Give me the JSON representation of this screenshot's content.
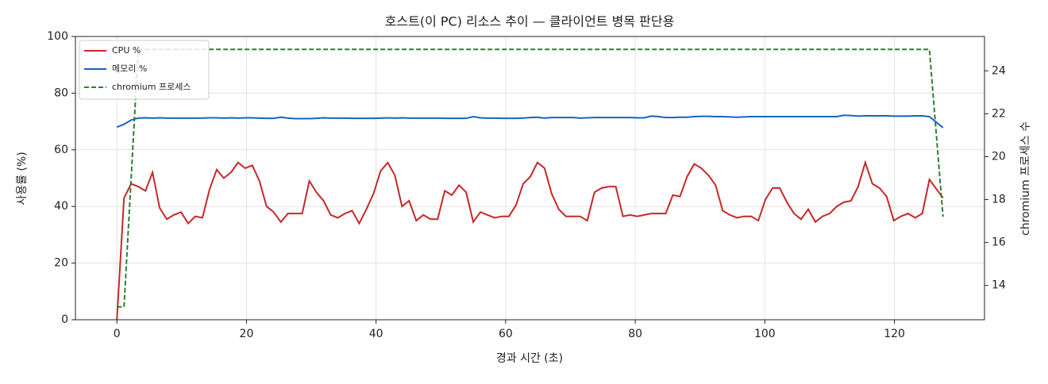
{
  "chart_data": {
    "type": "line",
    "title": "호스트(이 PC) 리소스 추이 — 클라이언트 병목 판단용",
    "x_label": "경과 시간 (초)",
    "y_label": "사용률 (%)",
    "y2_label": "chromium 프로세스 수",
    "x": [
      0,
      1.1,
      2.2,
      3.3,
      4.4,
      5.5,
      6.6,
      7.7,
      8.8,
      9.9,
      11,
      12.1,
      13.2,
      14.3,
      15.4,
      16.5,
      17.6,
      18.7,
      19.8,
      20.9,
      22,
      23.1,
      24.2,
      25.3,
      26.4,
      27.5,
      28.6,
      29.7,
      30.8,
      31.9,
      33,
      34.1,
      35.2,
      36.3,
      37.4,
      38.5,
      39.6,
      40.7,
      41.8,
      42.9,
      44,
      45.1,
      46.2,
      47.3,
      48.4,
      49.5,
      50.6,
      51.7,
      52.8,
      53.9,
      55,
      56.1,
      57.2,
      58.3,
      59.4,
      60.5,
      61.6,
      62.7,
      63.8,
      64.9,
      66,
      67.1,
      68.2,
      69.3,
      70.4,
      71.5,
      72.6,
      73.7,
      74.8,
      75.9,
      77,
      78.1,
      79.2,
      80.3,
      81.4,
      82.5,
      83.6,
      84.7,
      85.8,
      86.9,
      88,
      89.1,
      90.2,
      91.3,
      92.4,
      93.5,
      94.6,
      95.7,
      96.8,
      97.9,
      99,
      100.1,
      101.2,
      102.3,
      103.4,
      104.5,
      105.6,
      106.7,
      107.8,
      108.9,
      110,
      111.1,
      112.2,
      113.3,
      114.4,
      115.5,
      116.6,
      117.7,
      118.8,
      119.9,
      121,
      122.1,
      123.2,
      124.3,
      125.4,
      127.5
    ],
    "series": [
      {
        "name": "CPU %",
        "color": "#c62828",
        "dash": false,
        "values": [
          0,
          43,
          48,
          47,
          45.5,
          52,
          39.5,
          35.5,
          37,
          38,
          34,
          36.5,
          36,
          46,
          53,
          50,
          52,
          55.5,
          53.5,
          54.5,
          49,
          40,
          38,
          34.5,
          37.5,
          37.5,
          37.5,
          49,
          45,
          42,
          37,
          36,
          37.5,
          38.5,
          34,
          39,
          44.5,
          52.5,
          55.5,
          51,
          40,
          42,
          35,
          37,
          35.5,
          35.5,
          45.5,
          44,
          47.5,
          45,
          34.5,
          38,
          37,
          36,
          36.5,
          36.5,
          40.5,
          48,
          50.5,
          55.5,
          53.5,
          44.5,
          39,
          36.5,
          36.5,
          36.5,
          35,
          45,
          46.5,
          47,
          47,
          36.5,
          37,
          36.5,
          37,
          37.5,
          37.5,
          37.5,
          44,
          43.5,
          50.5,
          55,
          53.5,
          51,
          47.5,
          38.5,
          37,
          36,
          36.5,
          36.5,
          35,
          42.5,
          46.5,
          46.5,
          41.5,
          37.5,
          35.5,
          39,
          34.5,
          36.5,
          37.5,
          40,
          41.5,
          42,
          47,
          55.5,
          48,
          46.5,
          43.5,
          35,
          36.5,
          37.5,
          36,
          37.5,
          49.5,
          43
        ]
      },
      {
        "name": "메모리 %",
        "color": "#1565c0",
        "dash": false,
        "values": [
          68,
          69,
          70.5,
          71.2,
          71.3,
          71.2,
          71.3,
          71.2,
          71.2,
          71.2,
          71.2,
          71.2,
          71.2,
          71.3,
          71.3,
          71.2,
          71.3,
          71.2,
          71.3,
          71.3,
          71.2,
          71.1,
          71.1,
          71.5,
          71.2,
          71,
          71,
          71,
          71.1,
          71.3,
          71.2,
          71.2,
          71.2,
          71.1,
          71.1,
          71.1,
          71.1,
          71.2,
          71.3,
          71.2,
          71.3,
          71.2,
          71.2,
          71.2,
          71.2,
          71.2,
          71.1,
          71.1,
          71.1,
          71.1,
          71.7,
          71.3,
          71.2,
          71.2,
          71.1,
          71.1,
          71.1,
          71.2,
          71.4,
          71.5,
          71.2,
          71.4,
          71.4,
          71.4,
          71.4,
          71.2,
          71.3,
          71.4,
          71.4,
          71.4,
          71.4,
          71.4,
          71.4,
          71.3,
          71.3,
          71.9,
          71.7,
          71.4,
          71.4,
          71.5,
          71.5,
          71.7,
          71.8,
          71.8,
          71.7,
          71.7,
          71.6,
          71.5,
          71.6,
          71.7,
          71.7,
          71.7,
          71.7,
          71.7,
          71.7,
          71.7,
          71.7,
          71.7,
          71.7,
          71.7,
          71.7,
          71.7,
          72.2,
          72.1,
          71.9,
          72,
          72,
          72,
          72,
          71.9,
          71.9,
          71.9,
          72,
          72,
          71.7,
          67.8
        ]
      },
      {
        "name": "chromium 프로세스",
        "color": "#2e7d32",
        "dash": true,
        "axis": "y2",
        "values": [
          13,
          13,
          19,
          25,
          25,
          25,
          25,
          25,
          25,
          25,
          25,
          25,
          25,
          25,
          25,
          25,
          25,
          25,
          25,
          25,
          25,
          25,
          25,
          25,
          25,
          25,
          25,
          25,
          25,
          25,
          25,
          25,
          25,
          25,
          25,
          25,
          25,
          25,
          25,
          25,
          25,
          25,
          25,
          25,
          25,
          25,
          25,
          25,
          25,
          25,
          25,
          25,
          25,
          25,
          25,
          25,
          25,
          25,
          25,
          25,
          25,
          25,
          25,
          25,
          25,
          25,
          25,
          25,
          25,
          25,
          25,
          25,
          25,
          25,
          25,
          25,
          25,
          25,
          25,
          25,
          25,
          25,
          25,
          25,
          25,
          25,
          25,
          25,
          25,
          25,
          25,
          25,
          25,
          25,
          25,
          25,
          25,
          25,
          25,
          25,
          25,
          25,
          25,
          25,
          25,
          25,
          25,
          25,
          25,
          25,
          25,
          25,
          25,
          25,
          25,
          17.2
        ]
      }
    ],
    "xlim": [
      -6.4,
      133.9
    ],
    "ylim": [
      0,
      100
    ],
    "y2lim": [
      12.4,
      25.6
    ],
    "xticks": [
      0,
      20,
      40,
      60,
      80,
      100,
      120
    ],
    "yticks": [
      0,
      20,
      40,
      60,
      80,
      100
    ],
    "y2ticks": [
      14,
      16,
      18,
      20,
      22,
      24
    ],
    "grid": true,
    "legend": "upper left"
  }
}
